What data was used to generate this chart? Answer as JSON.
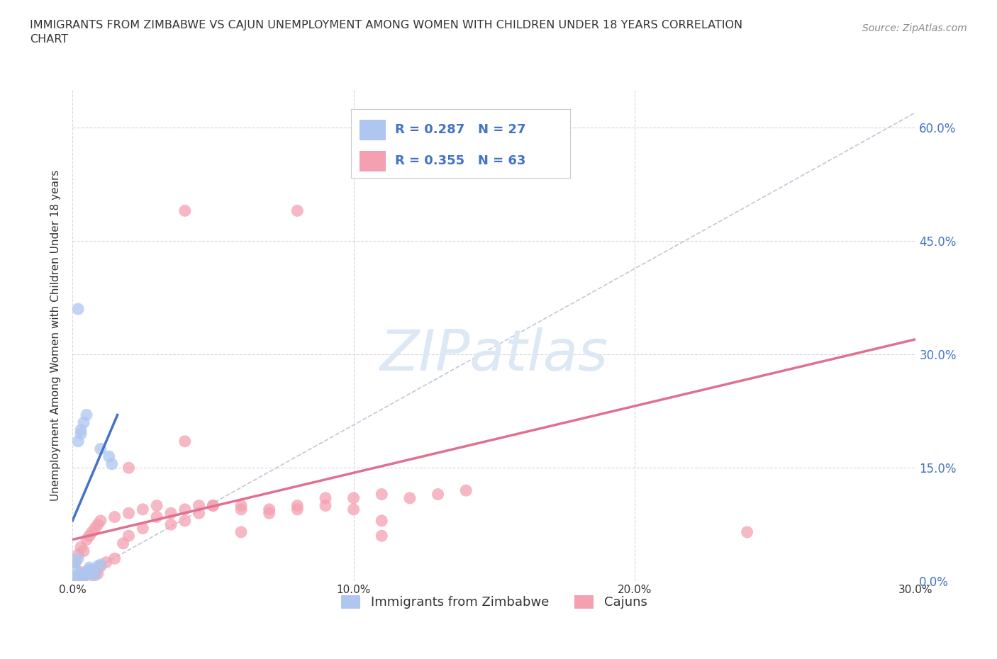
{
  "title": "IMMIGRANTS FROM ZIMBABWE VS CAJUN UNEMPLOYMENT AMONG WOMEN WITH CHILDREN UNDER 18 YEARS CORRELATION\nCHART",
  "source": "Source: ZipAtlas.com",
  "ylabel_label": "Unemployment Among Women with Children Under 18 years",
  "xlim": [
    0.0,
    0.3
  ],
  "ylim": [
    0.0,
    0.65
  ],
  "xticks": [
    0.0,
    0.1,
    0.2,
    0.3
  ],
  "yticks": [
    0.0,
    0.15,
    0.3,
    0.45,
    0.6
  ],
  "xtick_labels": [
    "0.0%",
    "10.0%",
    "20.0%",
    "30.0%"
  ],
  "ytick_labels": [
    "0.0%",
    "15.0%",
    "30.0%",
    "45.0%",
    "60.0%"
  ],
  "legend_entries": [
    {
      "label": "Immigrants from Zimbabwe",
      "color": "#aec6f0",
      "R": "0.287",
      "N": "27"
    },
    {
      "label": "Cajuns",
      "color": "#f4a0b0",
      "R": "0.355",
      "N": "63"
    }
  ],
  "blue_scatter_x": [
    0.001,
    0.002,
    0.003,
    0.004,
    0.005,
    0.006,
    0.003,
    0.004,
    0.005,
    0.006,
    0.007,
    0.008,
    0.009,
    0.01,
    0.001,
    0.002,
    0.003,
    0.004,
    0.005,
    0.002,
    0.003,
    0.01,
    0.013,
    0.014,
    0.002,
    0.001,
    0.001
  ],
  "blue_scatter_y": [
    0.005,
    0.008,
    0.01,
    0.006,
    0.012,
    0.015,
    0.004,
    0.008,
    0.01,
    0.018,
    0.012,
    0.008,
    0.02,
    0.022,
    0.025,
    0.03,
    0.2,
    0.21,
    0.22,
    0.185,
    0.195,
    0.175,
    0.165,
    0.155,
    0.36,
    0.002,
    0.015
  ],
  "pink_scatter_x": [
    0.001,
    0.002,
    0.003,
    0.004,
    0.005,
    0.006,
    0.007,
    0.008,
    0.009,
    0.01,
    0.012,
    0.015,
    0.018,
    0.02,
    0.025,
    0.03,
    0.035,
    0.04,
    0.045,
    0.05,
    0.06,
    0.07,
    0.08,
    0.09,
    0.1,
    0.11,
    0.12,
    0.13,
    0.14,
    0.001,
    0.002,
    0.003,
    0.004,
    0.005,
    0.006,
    0.007,
    0.008,
    0.009,
    0.01,
    0.015,
    0.02,
    0.025,
    0.03,
    0.035,
    0.04,
    0.045,
    0.05,
    0.06,
    0.07,
    0.08,
    0.09,
    0.1,
    0.11,
    0.001,
    0.002,
    0.003,
    0.02,
    0.04,
    0.06,
    0.24,
    0.04,
    0.08,
    0.11
  ],
  "pink_scatter_y": [
    0.005,
    0.008,
    0.012,
    0.006,
    0.01,
    0.015,
    0.008,
    0.012,
    0.01,
    0.02,
    0.025,
    0.03,
    0.05,
    0.06,
    0.07,
    0.085,
    0.09,
    0.095,
    0.1,
    0.1,
    0.1,
    0.095,
    0.1,
    0.11,
    0.11,
    0.115,
    0.11,
    0.115,
    0.12,
    0.025,
    0.035,
    0.045,
    0.04,
    0.055,
    0.06,
    0.065,
    0.07,
    0.075,
    0.08,
    0.085,
    0.09,
    0.095,
    0.1,
    0.075,
    0.08,
    0.09,
    0.1,
    0.095,
    0.09,
    0.095,
    0.1,
    0.095,
    0.08,
    0.003,
    0.004,
    0.002,
    0.15,
    0.185,
    0.065,
    0.065,
    0.49,
    0.49,
    0.06
  ],
  "blue_line_x": [
    0.0,
    0.016
  ],
  "blue_line_y": [
    0.08,
    0.22
  ],
  "pink_line_x": [
    0.0,
    0.3
  ],
  "pink_line_y": [
    0.055,
    0.32
  ],
  "dashed_line_x": [
    0.0,
    0.3
  ],
  "dashed_line_y": [
    0.0,
    0.62
  ],
  "blue_color": "#aec6f0",
  "pink_color": "#f4a0b0",
  "blue_line_color": "#4472c4",
  "pink_line_color": "#e07090",
  "dashed_line_color": "#c0c8d8",
  "grid_color": "#d8d8d8",
  "text_color": "#333333",
  "source_color": "#888888",
  "legend_R_N_color": "#4472c4",
  "watermark_color": "#dce8f4",
  "background_color": "#ffffff"
}
